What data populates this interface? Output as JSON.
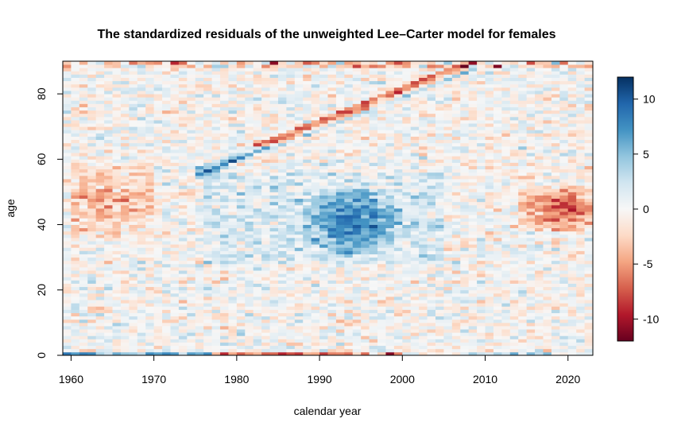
{
  "chart_data": {
    "type": "heatmap",
    "title": "The standardized residuals of the unweighted Lee–Carter model for females",
    "xlabel": "calendar year",
    "ylabel": "age",
    "x_range": [
      1959,
      2023
    ],
    "y_range": [
      0,
      90
    ],
    "x_ticks": [
      "1960",
      "1970",
      "1980",
      "1990",
      "2000",
      "2010",
      "2020"
    ],
    "y_ticks": [
      "0",
      "20",
      "40",
      "60",
      "80"
    ],
    "colorbar": {
      "range": [
        -12,
        12
      ],
      "ticks": [
        "10",
        "5",
        "0",
        "-5",
        "-10"
      ],
      "colors": [
        "#67001f",
        "#b2182b",
        "#d6604d",
        "#f4a582",
        "#fddbc7",
        "#f7f7f7",
        "#d1e5f0",
        "#92c5de",
        "#4393c3",
        "#2166ac",
        "#053061"
      ]
    },
    "features": [
      {
        "year_range": [
          1960,
          1970
        ],
        "age_range": [
          35,
          60
        ],
        "residual": -4
      },
      {
        "year_range": [
          1988,
          2000
        ],
        "age_range": [
          30,
          52
        ],
        "residual": 6
      },
      {
        "year_range": [
          2014,
          2023
        ],
        "age_range": [
          38,
          52
        ],
        "residual": -6
      },
      {
        "year_range": [
          1975,
          2010
        ],
        "age_range": [
          55,
          90
        ],
        "residual": -6,
        "note_band": "cohort-diagonal"
      },
      {
        "year_range": [
          1960,
          1976
        ],
        "age_range": [
          0,
          1
        ],
        "residual": 7
      },
      {
        "year_range": [
          1978,
          2000
        ],
        "age_range": [
          0,
          1
        ],
        "residual": -7
      },
      {
        "year_range": [
          2008,
          2018
        ],
        "age_range": [
          0,
          1
        ],
        "residual": 5
      }
    ],
    "grid": false,
    "legend": "right"
  }
}
